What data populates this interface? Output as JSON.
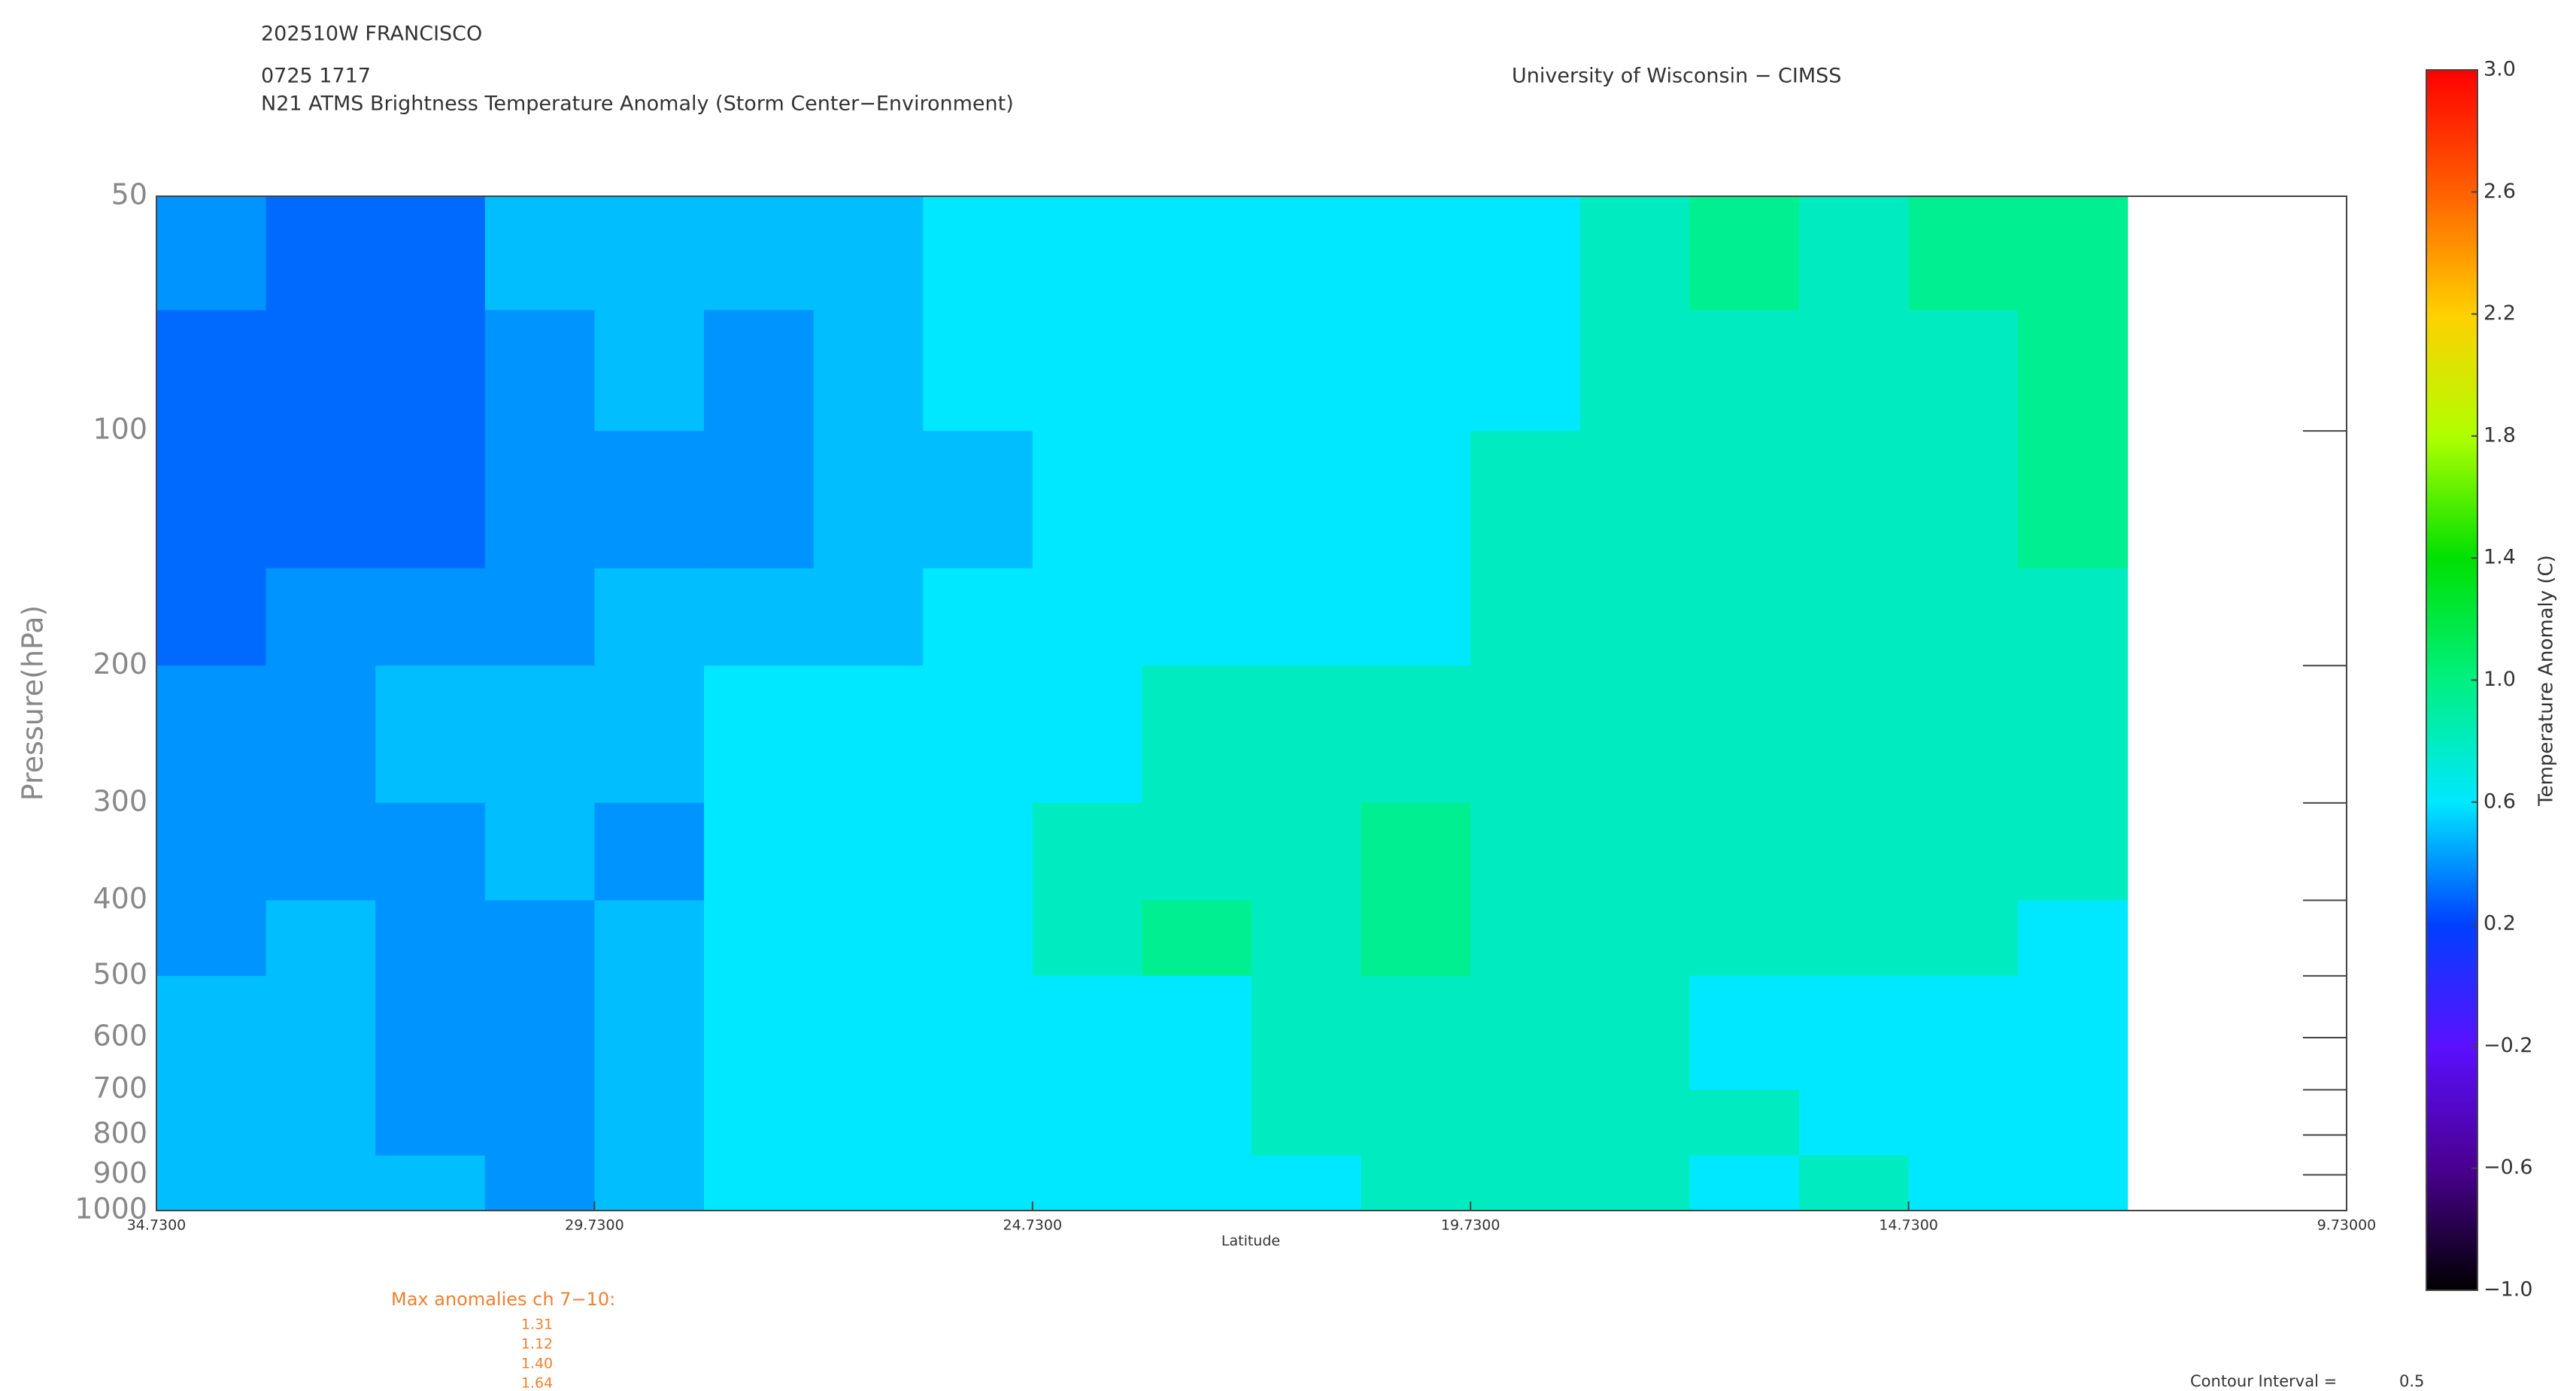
{
  "chart_data": {
    "type": "contour",
    "storm": "202510W FRANCISCO",
    "time": "0725 1717",
    "title": "N21 ATMS Brightness Temperature Anomaly (Storm Center−Environment)",
    "source": "University of Wisconsin − CIMSS",
    "xlabel": "Latitude",
    "ylabel": "Pressure(hPa)",
    "x_edges": [
      34.73,
      33.48,
      32.23,
      30.98,
      29.73,
      28.48,
      27.23,
      25.98,
      24.73,
      23.48,
      22.23,
      20.98,
      19.73,
      18.48,
      17.23,
      15.98,
      14.73,
      13.48,
      12.23
    ],
    "y_edges": [
      50,
      70,
      100,
      150,
      200,
      300,
      400,
      500,
      700,
      850,
      1000
    ],
    "z": [
      [
        0.4,
        0.3,
        0.3,
        0.5,
        0.5,
        0.5,
        0.5,
        0.6,
        0.6,
        0.6,
        0.6,
        0.6,
        0.6,
        0.8,
        0.95,
        0.8,
        0.95,
        0.95
      ],
      [
        0.3,
        0.3,
        0.3,
        0.4,
        0.5,
        0.4,
        0.5,
        0.6,
        0.6,
        0.6,
        0.6,
        0.6,
        0.6,
        0.8,
        0.8,
        0.8,
        0.8,
        0.95
      ],
      [
        0.3,
        0.3,
        0.3,
        0.4,
        0.4,
        0.4,
        0.5,
        0.5,
        0.6,
        0.6,
        0.6,
        0.6,
        0.8,
        0.8,
        0.8,
        0.8,
        0.8,
        0.95
      ],
      [
        0.3,
        0.4,
        0.4,
        0.4,
        0.5,
        0.5,
        0.5,
        0.6,
        0.6,
        0.6,
        0.6,
        0.6,
        0.8,
        0.8,
        0.8,
        0.8,
        0.8,
        0.8
      ],
      [
        0.4,
        0.4,
        0.5,
        0.5,
        0.5,
        0.6,
        0.6,
        0.6,
        0.6,
        0.8,
        0.8,
        0.8,
        0.8,
        0.8,
        0.8,
        0.8,
        0.8,
        0.8
      ],
      [
        0.4,
        0.4,
        0.4,
        0.5,
        0.4,
        0.6,
        0.6,
        0.6,
        0.8,
        0.8,
        0.8,
        0.95,
        0.8,
        0.8,
        0.8,
        0.8,
        0.8,
        0.8
      ],
      [
        0.4,
        0.5,
        0.4,
        0.4,
        0.5,
        0.6,
        0.6,
        0.6,
        0.8,
        0.95,
        0.8,
        0.95,
        0.8,
        0.8,
        0.8,
        0.8,
        0.8,
        0.6
      ],
      [
        0.5,
        0.5,
        0.4,
        0.4,
        0.5,
        0.6,
        0.6,
        0.6,
        0.6,
        0.6,
        0.8,
        0.8,
        0.8,
        0.8,
        0.6,
        0.6,
        0.6,
        0.6
      ],
      [
        0.5,
        0.5,
        0.4,
        0.4,
        0.5,
        0.6,
        0.6,
        0.6,
        0.6,
        0.6,
        0.8,
        0.8,
        0.8,
        0.8,
        0.8,
        0.6,
        0.6,
        0.6
      ],
      [
        0.5,
        0.5,
        0.5,
        0.4,
        0.5,
        0.6,
        0.6,
        0.6,
        0.6,
        0.6,
        0.6,
        0.8,
        0.8,
        0.8,
        0.6,
        0.8,
        0.6,
        0.6
      ]
    ],
    "xlim": [
      34.73,
      9.73
    ],
    "xticks": [
      {
        "value": 34.73,
        "label": "34.7300"
      },
      {
        "value": 29.73,
        "label": "29.7300"
      },
      {
        "value": 24.73,
        "label": "24.7300"
      },
      {
        "value": 19.73,
        "label": "19.7300"
      },
      {
        "value": 14.73,
        "label": "14.7300"
      },
      {
        "value": 9.73,
        "label": "9.73000"
      }
    ],
    "ylim": [
      1000,
      50
    ],
    "ylog": true,
    "yticks": [
      50,
      100,
      200,
      300,
      400,
      500,
      600,
      700,
      800,
      900,
      1000
    ],
    "colorbar": {
      "label": "Temperature Anomaly (C)",
      "lim": [
        -1,
        3
      ],
      "ticks": [
        {
          "value": -1,
          "label": "−1.0"
        },
        {
          "value": -0.6,
          "label": "−0.6"
        },
        {
          "value": -0.2,
          "label": "−0.2"
        },
        {
          "value": 0.2,
          "label": "0.2"
        },
        {
          "value": 0.6,
          "label": "0.6"
        },
        {
          "value": 1,
          "label": "1.0"
        },
        {
          "value": 1.4,
          "label": "1.4"
        },
        {
          "value": 1.8,
          "label": "1.8"
        },
        {
          "value": 2.2,
          "label": "2.2"
        },
        {
          "value": 2.6,
          "label": "2.6"
        },
        {
          "value": 3,
          "label": "3.0"
        }
      ],
      "colors": [
        "#000000",
        "#4a0090",
        "#5a10ff",
        "#0040ff",
        "#00e8ff",
        "#00f080",
        "#00e000",
        "#b0ff00",
        "#ffd000",
        "#ff6000",
        "#ff0000"
      ]
    },
    "max_anomalies": {
      "label": "Max anomalies ch 7−10:",
      "values": [
        1.31,
        1.12,
        1.4,
        1.64
      ],
      "value_labels": [
        "1.31",
        "1.12",
        "1.40",
        "1.64"
      ]
    },
    "contour_interval_label": "Contour Interval =",
    "contour_interval": 0.5
  }
}
